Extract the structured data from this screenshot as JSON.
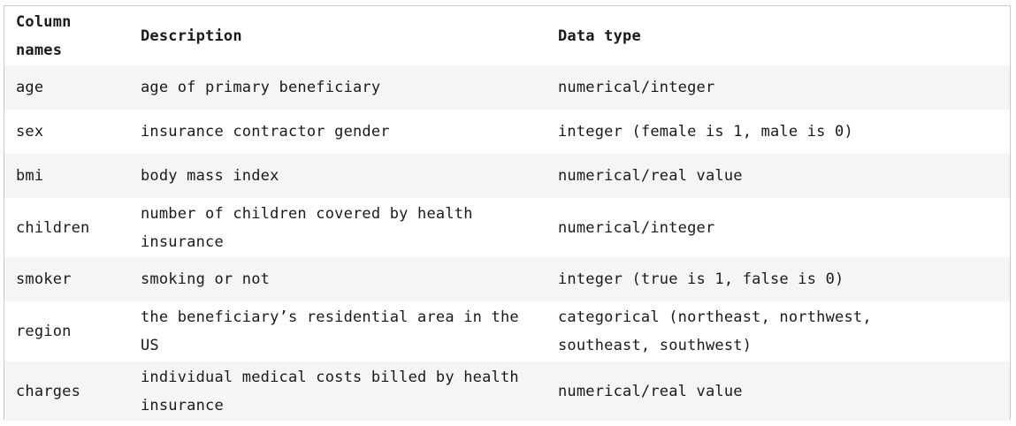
{
  "table": {
    "headers": [
      "Column names",
      "Description",
      "Data type"
    ],
    "rows": [
      {
        "name": "age",
        "description": "age of primary beneficiary",
        "type": "numerical/integer"
      },
      {
        "name": "sex",
        "description": "insurance contractor gender",
        "type": "integer (female is 1, male is 0)"
      },
      {
        "name": "bmi",
        "description": "body mass index",
        "type": "numerical/real value"
      },
      {
        "name": "children",
        "description": "number of children covered by health insurance",
        "type": "numerical/integer"
      },
      {
        "name": "smoker",
        "description": "smoking or not",
        "type": "integer (true is 1, false is 0)"
      },
      {
        "name": "region",
        "description": "the beneficiary’s residential area in the US",
        "type": "categorical (northeast, northwest, southeast, southwest)"
      },
      {
        "name": "charges",
        "description": "individual medical costs billed by health insurance",
        "type": "numerical/real value"
      }
    ]
  }
}
